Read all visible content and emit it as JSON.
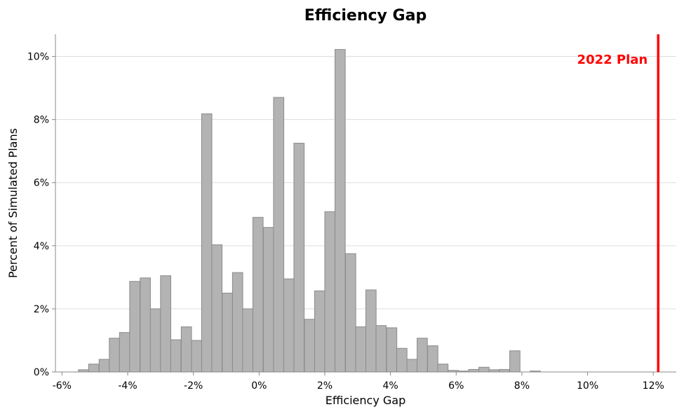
{
  "chart_data": {
    "type": "bar",
    "title": "Efficiency Gap",
    "xlabel": "Efficiency Gap",
    "ylabel": "Percent of Simulated Plans",
    "xlim": [
      -6.2,
      12.7
    ],
    "ylim": [
      0,
      10.7
    ],
    "bin_width": 0.3125,
    "xticks": [
      -6,
      -4,
      -2,
      0,
      2,
      4,
      6,
      8,
      10,
      12
    ],
    "xtick_labels": [
      "-6%",
      "-4%",
      "-2%",
      "0%",
      "2%",
      "4%",
      "6%",
      "8%",
      "10%",
      "12%"
    ],
    "yticks": [
      0,
      2,
      4,
      6,
      8,
      10
    ],
    "ytick_labels": [
      "0%",
      "2%",
      "4%",
      "6%",
      "8%",
      "10%"
    ],
    "grid": "y",
    "bins_start": [
      -5.5,
      -5.19,
      -4.87,
      -4.56,
      -4.25,
      -3.94,
      -3.62,
      -3.31,
      -3.0,
      -2.69,
      -2.37,
      -2.06,
      -1.75,
      -1.44,
      -1.12,
      -0.81,
      -0.5,
      -0.19,
      0.13,
      0.44,
      0.75,
      1.06,
      1.38,
      1.69,
      2.0,
      2.31,
      2.63,
      2.94,
      3.25,
      3.56,
      3.88,
      4.19,
      4.5,
      4.81,
      5.13,
      5.44,
      5.75,
      6.06,
      6.38,
      6.69,
      7.0,
      7.31,
      7.63,
      7.94,
      8.25
    ],
    "values": [
      0.07,
      0.25,
      0.4,
      1.07,
      1.25,
      2.87,
      2.98,
      2.0,
      3.05,
      1.02,
      1.43,
      1.0,
      8.18,
      4.03,
      2.5,
      3.15,
      2.0,
      4.9,
      4.58,
      8.7,
      2.95,
      7.25,
      1.67,
      2.57,
      5.08,
      10.22,
      3.75,
      1.43,
      2.6,
      1.47,
      1.4,
      0.75,
      0.4,
      1.07,
      0.83,
      0.25,
      0.05,
      0.03,
      0.08,
      0.15,
      0.07,
      0.08,
      0.67,
      0.0,
      0.03
    ],
    "bar_color": "#b3b3b3",
    "bar_edge_color": "#8a8a8a",
    "reference_line": {
      "x": 12.15,
      "color": "#ff0000",
      "label": "2022 Plan"
    }
  }
}
